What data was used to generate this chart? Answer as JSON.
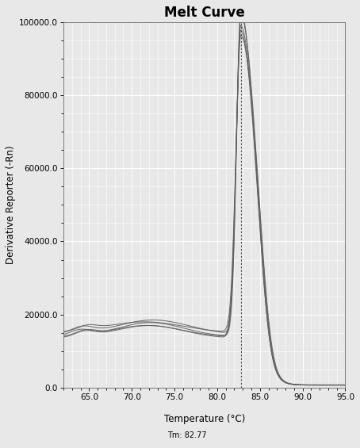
{
  "title": "Melt Curve",
  "xlabel": "Temperature (°C)",
  "ylabel": "Derivative Reporter (-Rn)",
  "xlim": [
    62,
    95
  ],
  "ylim": [
    0,
    100000
  ],
  "x_ticks": [
    65.0,
    70.0,
    75.0,
    80.0,
    85.0,
    90.0,
    95.0
  ],
  "y_ticks": [
    0,
    20000,
    40000,
    60000,
    80000,
    100000
  ],
  "tm": 82.77,
  "tm_label": "Tm: 82.77",
  "background_color": "#e8e8e8",
  "plot_bg_color": "#e8e8e8",
  "line_color": "#606060",
  "grid_color": "#ffffff",
  "num_curves": 5,
  "title_fontsize": 12,
  "label_fontsize": 8.5,
  "tick_fontsize": 7.5
}
